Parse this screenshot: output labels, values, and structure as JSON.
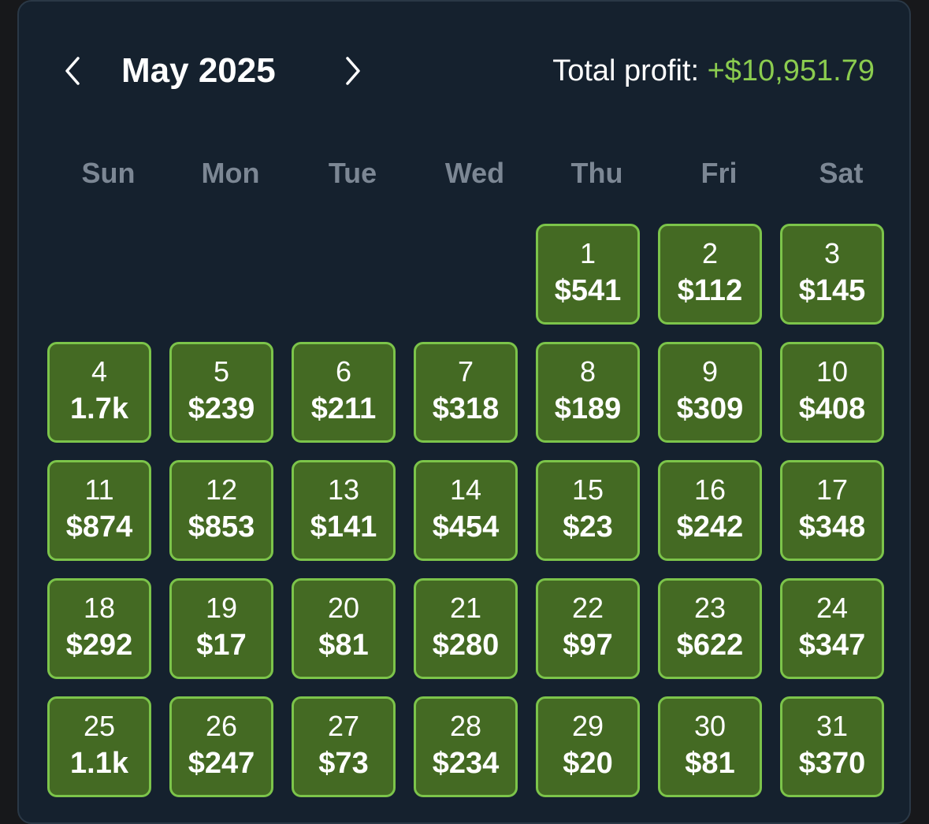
{
  "header": {
    "month_title": "May 2025",
    "profit_label": "Total profit: ",
    "profit_value": "+$10,951.79",
    "prev_icon": "chevron-left-icon",
    "next_icon": "chevron-right-icon"
  },
  "colors": {
    "panel_bg": "#15212e",
    "cell_bg": "#446a23",
    "cell_border": "#7cc44a",
    "profit_green": "#8bcc4f",
    "weekday_gray": "#7c8794"
  },
  "weekdays": [
    "Sun",
    "Mon",
    "Tue",
    "Wed",
    "Thu",
    "Fri",
    "Sat"
  ],
  "calendar": {
    "first_weekday_index": 4,
    "days": [
      {
        "day": "1",
        "value": "$541"
      },
      {
        "day": "2",
        "value": "$112"
      },
      {
        "day": "3",
        "value": "$145"
      },
      {
        "day": "4",
        "value": "1.7k"
      },
      {
        "day": "5",
        "value": "$239"
      },
      {
        "day": "6",
        "value": "$211"
      },
      {
        "day": "7",
        "value": "$318"
      },
      {
        "day": "8",
        "value": "$189"
      },
      {
        "day": "9",
        "value": "$309"
      },
      {
        "day": "10",
        "value": "$408"
      },
      {
        "day": "11",
        "value": "$874"
      },
      {
        "day": "12",
        "value": "$853"
      },
      {
        "day": "13",
        "value": "$141"
      },
      {
        "day": "14",
        "value": "$454"
      },
      {
        "day": "15",
        "value": "$23"
      },
      {
        "day": "16",
        "value": "$242"
      },
      {
        "day": "17",
        "value": "$348"
      },
      {
        "day": "18",
        "value": "$292"
      },
      {
        "day": "19",
        "value": "$17"
      },
      {
        "day": "20",
        "value": "$81"
      },
      {
        "day": "21",
        "value": "$280"
      },
      {
        "day": "22",
        "value": "$97"
      },
      {
        "day": "23",
        "value": "$622"
      },
      {
        "day": "24",
        "value": "$347"
      },
      {
        "day": "25",
        "value": "1.1k"
      },
      {
        "day": "26",
        "value": "$247"
      },
      {
        "day": "27",
        "value": "$73"
      },
      {
        "day": "28",
        "value": "$234"
      },
      {
        "day": "29",
        "value": "$20"
      },
      {
        "day": "30",
        "value": "$81"
      },
      {
        "day": "31",
        "value": "$370"
      }
    ]
  }
}
